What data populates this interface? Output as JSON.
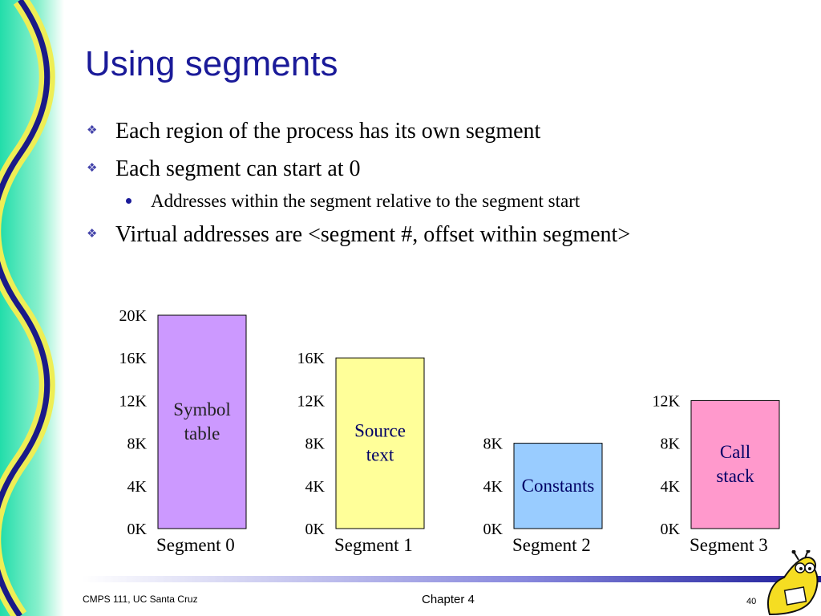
{
  "slide": {
    "title": "Using segments",
    "bullets": [
      "Each region of the process has its own segment",
      "Each segment can start at 0",
      "Virtual addresses are <segment #, offset within segment>"
    ],
    "sub_bullets": [
      "Addresses within the segment relative to the segment start"
    ]
  },
  "diagram": {
    "segments": [
      {
        "name": "Segment 0",
        "label_lines": [
          "Symbol",
          "table"
        ],
        "size_k": 20,
        "ticks": [
          "20K",
          "16K",
          "12K",
          "8K",
          "4K",
          "0K"
        ],
        "color": "#cc99ff"
      },
      {
        "name": "Segment 1",
        "label_lines": [
          "Source",
          "text"
        ],
        "size_k": 16,
        "ticks": [
          "16K",
          "12K",
          "8K",
          "4K",
          "0K"
        ],
        "color": "#ffff99"
      },
      {
        "name": "Segment 2",
        "label_lines": [
          "Constants"
        ],
        "size_k": 8,
        "ticks": [
          "8K",
          "4K",
          "0K"
        ],
        "color": "#99ccff"
      },
      {
        "name": "Segment 3",
        "label_lines": [
          "Call",
          "stack"
        ],
        "size_k": 12,
        "ticks": [
          "12K",
          "8K",
          "4K",
          "0K"
        ],
        "color": "#ff99cc"
      }
    ]
  },
  "footer": {
    "course": "CMPS 111, UC Santa Cruz",
    "chapter": "Chapter 4",
    "page": "40"
  },
  "colors": {
    "title": "#1a1a99",
    "accent": "#1a1a99",
    "wave_yellow": "#eeee55",
    "wave_green": "#33ddaa"
  }
}
